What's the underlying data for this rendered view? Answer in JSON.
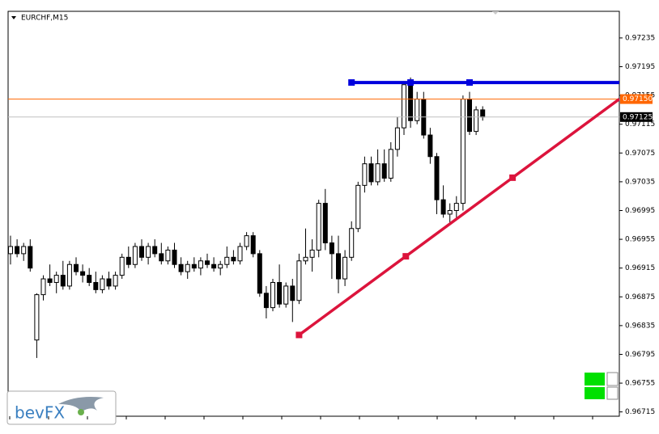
{
  "chart_data": {
    "type": "candlestick",
    "title": "EURCHF,M15",
    "open": [
      0.96935,
      0.96945,
      0.96935,
      0.96945,
      0.96815,
      0.96878,
      0.969,
      0.96895,
      0.96905,
      0.9689,
      0.9692,
      0.9691,
      0.96905,
      0.96895,
      0.96885,
      0.969,
      0.9689,
      0.96905,
      0.9693,
      0.9692,
      0.96945,
      0.9693,
      0.96945,
      0.96935,
      0.96925,
      0.9694,
      0.9692,
      0.9691,
      0.9692,
      0.96915,
      0.96925,
      0.9692,
      0.96915,
      0.9692,
      0.9693,
      0.96925,
      0.96945,
      0.9696,
      0.96935,
      0.9688,
      0.9686,
      0.96895,
      0.96865,
      0.9689,
      0.9687,
      0.96925,
      0.9693,
      0.9694,
      0.97005,
      0.9695,
      0.96935,
      0.969,
      0.9693,
      0.9697,
      0.9703,
      0.9706,
      0.97035,
      0.9706,
      0.9704,
      0.9708,
      0.9711,
      0.9717,
      0.9712,
      0.9715,
      0.971,
      0.9707,
      0.9701,
      0.9699,
      0.96995,
      0.97005,
      0.9715,
      0.97105,
      0.97135
    ],
    "high": [
      0.9696,
      0.96955,
      0.9695,
      0.96955,
      0.9688,
      0.96905,
      0.9692,
      0.9691,
      0.96925,
      0.96925,
      0.9693,
      0.9692,
      0.96915,
      0.9691,
      0.96905,
      0.9691,
      0.9691,
      0.96935,
      0.96945,
      0.9695,
      0.96955,
      0.9695,
      0.96955,
      0.9695,
      0.96945,
      0.9695,
      0.9693,
      0.96925,
      0.9693,
      0.9693,
      0.96935,
      0.9693,
      0.96925,
      0.96945,
      0.9694,
      0.9695,
      0.96965,
      0.96965,
      0.9694,
      0.9689,
      0.969,
      0.9692,
      0.96895,
      0.969,
      0.96935,
      0.9697,
      0.96955,
      0.9701,
      0.97025,
      0.9696,
      0.9696,
      0.9694,
      0.9698,
      0.97035,
      0.9707,
      0.9707,
      0.9708,
      0.9708,
      0.9709,
      0.97125,
      0.97175,
      0.9718,
      0.9716,
      0.9716,
      0.9711,
      0.97075,
      0.9703,
      0.97005,
      0.97015,
      0.97155,
      0.9716,
      0.9714,
      0.9714
    ],
    "low": [
      0.9692,
      0.9693,
      0.96925,
      0.9691,
      0.9679,
      0.9687,
      0.9689,
      0.9688,
      0.96885,
      0.96885,
      0.96905,
      0.96895,
      0.9689,
      0.9688,
      0.9688,
      0.96885,
      0.96885,
      0.969,
      0.96915,
      0.96915,
      0.96925,
      0.9692,
      0.9693,
      0.9692,
      0.9692,
      0.96915,
      0.96905,
      0.969,
      0.9691,
      0.96905,
      0.96915,
      0.9691,
      0.96905,
      0.96915,
      0.9692,
      0.9692,
      0.9694,
      0.9693,
      0.96875,
      0.96845,
      0.96855,
      0.9686,
      0.9686,
      0.9684,
      0.96865,
      0.9692,
      0.9691,
      0.9693,
      0.9694,
      0.969,
      0.9688,
      0.9689,
      0.96925,
      0.96965,
      0.9702,
      0.9703,
      0.9703,
      0.97035,
      0.97035,
      0.9707,
      0.971,
      0.9711,
      0.97115,
      0.97095,
      0.9706,
      0.9699,
      0.96985,
      0.96975,
      0.96985,
      0.96995,
      0.971,
      0.971,
      0.9712
    ],
    "close": [
      0.96945,
      0.96935,
      0.96945,
      0.96915,
      0.96878,
      0.969,
      0.96895,
      0.96905,
      0.9689,
      0.9692,
      0.9691,
      0.96905,
      0.96895,
      0.96885,
      0.969,
      0.9689,
      0.96905,
      0.9693,
      0.9692,
      0.96945,
      0.9693,
      0.96945,
      0.96935,
      0.96925,
      0.9694,
      0.9692,
      0.9691,
      0.9692,
      0.96915,
      0.96925,
      0.9692,
      0.96915,
      0.9692,
      0.9693,
      0.96925,
      0.96945,
      0.9696,
      0.96935,
      0.9688,
      0.9686,
      0.96895,
      0.96865,
      0.9689,
      0.9687,
      0.96925,
      0.9693,
      0.9694,
      0.97005,
      0.9695,
      0.96935,
      0.969,
      0.9693,
      0.9697,
      0.9703,
      0.9706,
      0.97035,
      0.9706,
      0.9704,
      0.9708,
      0.9711,
      0.9717,
      0.9712,
      0.9715,
      0.971,
      0.9707,
      0.9701,
      0.9699,
      0.96995,
      0.97005,
      0.9715,
      0.97105,
      0.97135,
      0.97125
    ],
    "ylim": [
      0.96709,
      0.97272
    ],
    "yticks": [
      0.97235,
      0.97195,
      0.97155,
      0.97115,
      0.97075,
      0.97035,
      0.96995,
      0.96955,
      0.96915,
      0.96875,
      0.96835,
      0.96795,
      0.96755,
      0.96715
    ],
    "price_lines": [
      {
        "value": 0.9715,
        "label": "0.97150",
        "color": "#ff6600"
      },
      {
        "value": 0.97125,
        "label": "0.97125",
        "color": "#c0c0c0"
      }
    ],
    "horizontal_line": {
      "value": 0.97173,
      "start_index": 52,
      "handles": [
        52,
        61,
        70
      ],
      "color": "#0000dd"
    },
    "trendline": {
      "values": [
        0.96822,
        0.9715
      ],
      "start_index": 44,
      "color": "#dc143c"
    },
    "logo": "bevFX"
  }
}
